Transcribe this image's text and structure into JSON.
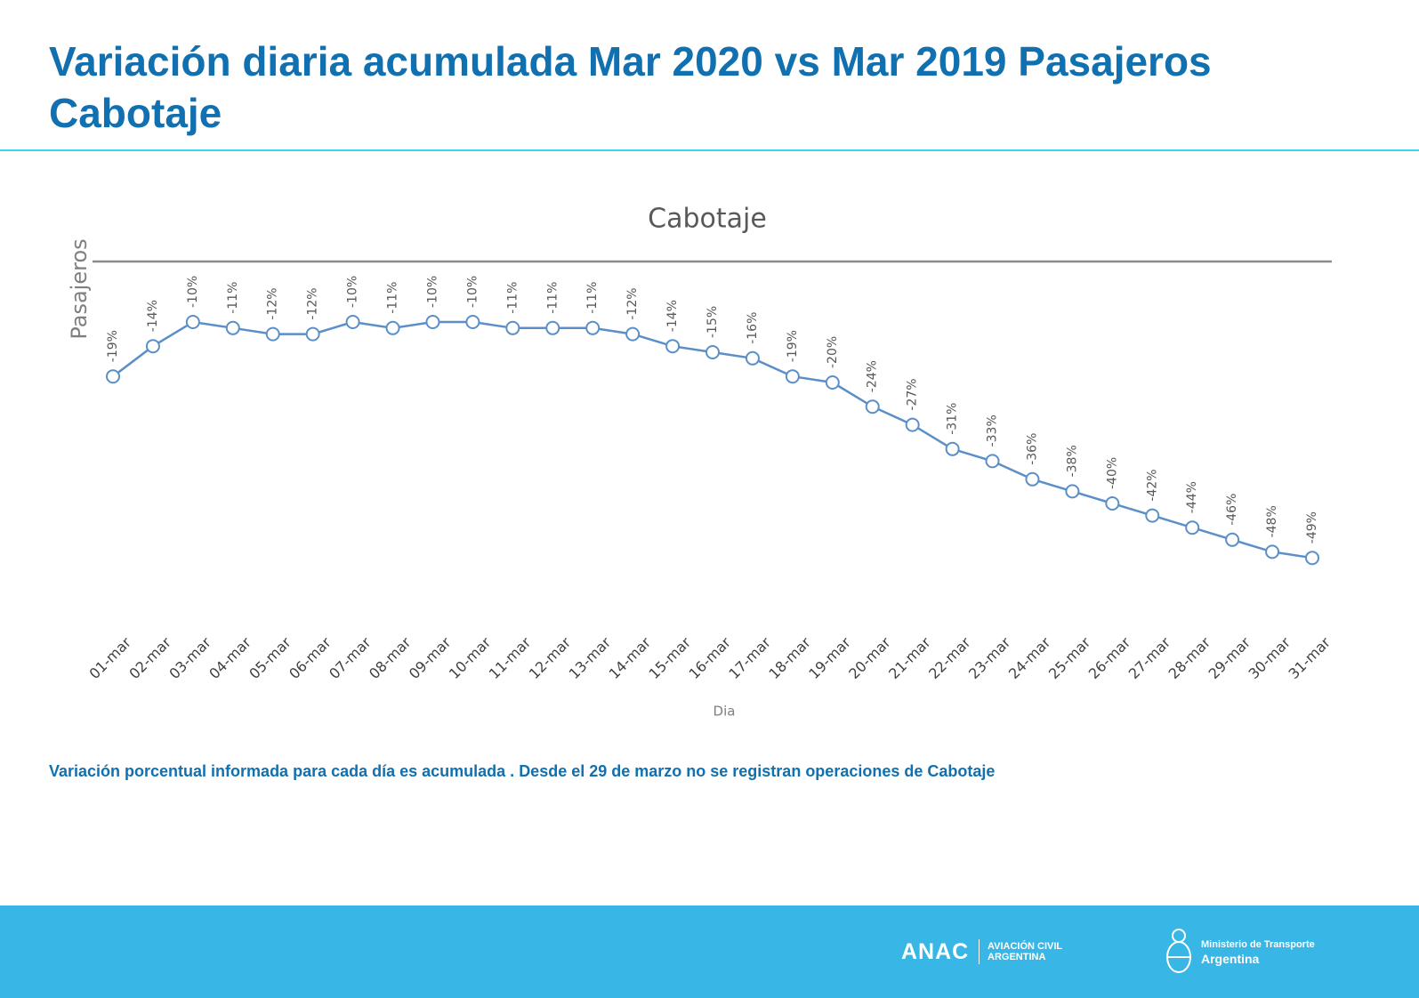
{
  "header": {
    "title": "Variación diaria acumulada Mar 2020 vs Mar 2019 Pasajeros Cabotaje"
  },
  "chart_data": {
    "type": "line",
    "title": "Cabotaje",
    "y_label": "Pasajeros",
    "x_label": "Dia",
    "categories": [
      "01-mar",
      "02-mar",
      "03-mar",
      "04-mar",
      "05-mar",
      "06-mar",
      "07-mar",
      "08-mar",
      "09-mar",
      "10-mar",
      "11-mar",
      "12-mar",
      "13-mar",
      "14-mar",
      "15-mar",
      "16-mar",
      "17-mar",
      "18-mar",
      "19-mar",
      "20-mar",
      "21-mar",
      "22-mar",
      "23-mar",
      "24-mar",
      "25-mar",
      "26-mar",
      "27-mar",
      "28-mar",
      "29-mar",
      "30-mar",
      "31-mar"
    ],
    "values": [
      -19,
      -14,
      -10,
      -11,
      -12,
      -12,
      -10,
      -11,
      -10,
      -10,
      -11,
      -11,
      -11,
      -12,
      -14,
      -15,
      -16,
      -19,
      -20,
      -24,
      -27,
      -31,
      -33,
      -36,
      -38,
      -40,
      -42,
      -44,
      -46,
      -48,
      -49
    ],
    "value_labels": [
      "-19%",
      "-14%",
      "-10%",
      "-11%",
      "-12%",
      "-12%",
      "-10%",
      "-11%",
      "-10%",
      "-10%",
      "-11%",
      "-11%",
      "-11%",
      "-12%",
      "-14%",
      "-15%",
      "-16%",
      "-19%",
      "-20%",
      "-24%",
      "-27%",
      "-31%",
      "-33%",
      "-36%",
      "-38%",
      "-40%",
      "-42%",
      "-44%",
      "-46%",
      "-48%",
      "-49%"
    ],
    "color": "#5b8fc7",
    "ylim": [
      -60,
      0
    ]
  },
  "note": "Variación porcentual informada para cada día es acumulada . Desde el 29 de marzo no se registran operaciones de Cabotaje",
  "footer": {
    "anac": "ANAC",
    "anac_line1": "AVIACIÓN CIVIL",
    "anac_line2": "ARGENTINA",
    "ministry": "Ministerio de Transporte",
    "country": "Argentina"
  }
}
